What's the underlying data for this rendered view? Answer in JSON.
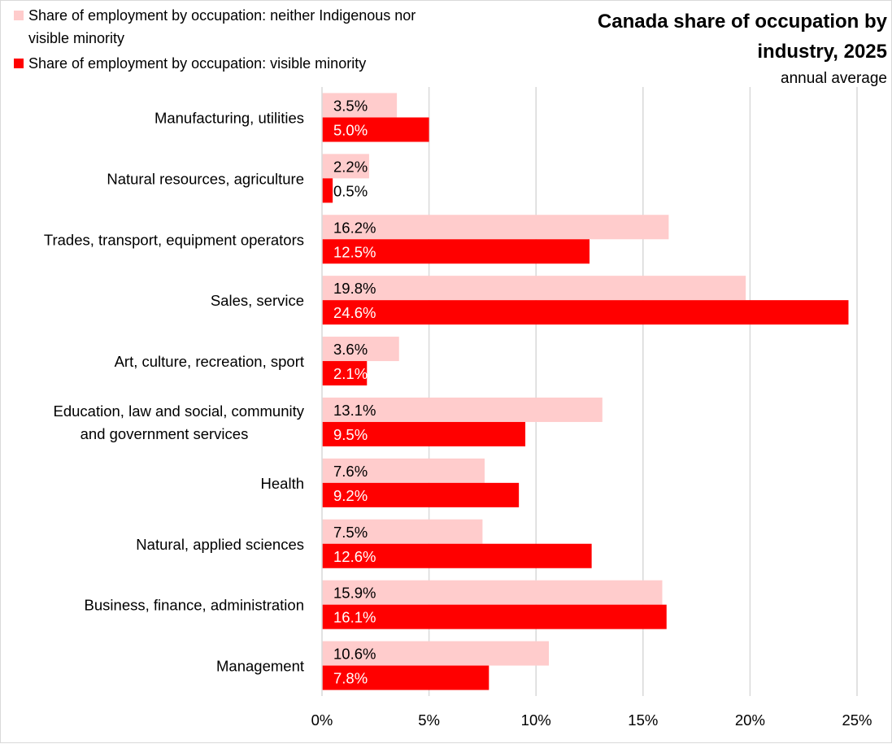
{
  "chart_data": {
    "type": "bar",
    "orientation": "horizontal",
    "title": "Canada share of occupation by industry, 2025",
    "title_lines": [
      "Canada share of occupation by",
      "industry, 2025"
    ],
    "subtitle": "annual average",
    "categories": [
      "Manufacturing, utilities",
      "Natural resources, agriculture",
      "Trades, transport, equipment operators",
      "Sales, service",
      "Art, culture, recreation, sport",
      "Education, law and social, community and government services",
      "Health",
      "Natural, applied sciences",
      "Business, finance, administration",
      "Management"
    ],
    "category_label_lines": [
      [
        "Manufacturing, utilities"
      ],
      [
        "Natural resources, agriculture"
      ],
      [
        "Trades, transport, equipment operators"
      ],
      [
        "Sales, service"
      ],
      [
        "Art, culture, recreation, sport"
      ],
      [
        "Education, law and social, community",
        "and government services"
      ],
      [
        "Health"
      ],
      [
        "Natural, applied sciences"
      ],
      [
        "Business, finance, administration"
      ],
      [
        "Management"
      ]
    ],
    "series": [
      {
        "name": "Share of employment by occupation: neither Indigenous nor visible minority",
        "legend_lines": [
          "Share of employment by occupation: neither Indigenous nor",
          "visible minority"
        ],
        "color": "#ffcccc",
        "values": [
          3.5,
          2.2,
          16.2,
          19.8,
          3.6,
          13.1,
          7.6,
          7.5,
          15.9,
          10.6
        ],
        "labels": [
          "3.5%",
          "2.2%",
          "16.2%",
          "19.8%",
          "3.6%",
          "13.1%",
          "7.6%",
          "7.5%",
          "15.9%",
          "10.6%"
        ]
      },
      {
        "name": "Share of employment by occupation: visible minority",
        "legend_lines": [
          "Share of employment by occupation: visible minority"
        ],
        "color": "#ff0000",
        "values": [
          5.0,
          0.5,
          12.5,
          24.6,
          2.1,
          9.5,
          9.2,
          12.6,
          16.1,
          7.8
        ],
        "labels": [
          "5.0%",
          "0.5%",
          "12.5%",
          "24.6%",
          "2.1%",
          "9.5%",
          "9.2%",
          "12.6%",
          "16.1%",
          "7.8%"
        ]
      }
    ],
    "xlim": [
      0,
      25
    ],
    "xticks": [
      0,
      5,
      10,
      15,
      20,
      25
    ],
    "xtick_labels": [
      "0%",
      "5%",
      "10%",
      "15%",
      "20%",
      "25%"
    ],
    "xlabel": "",
    "ylabel": "",
    "grid": true,
    "legend_position": "top-left"
  }
}
